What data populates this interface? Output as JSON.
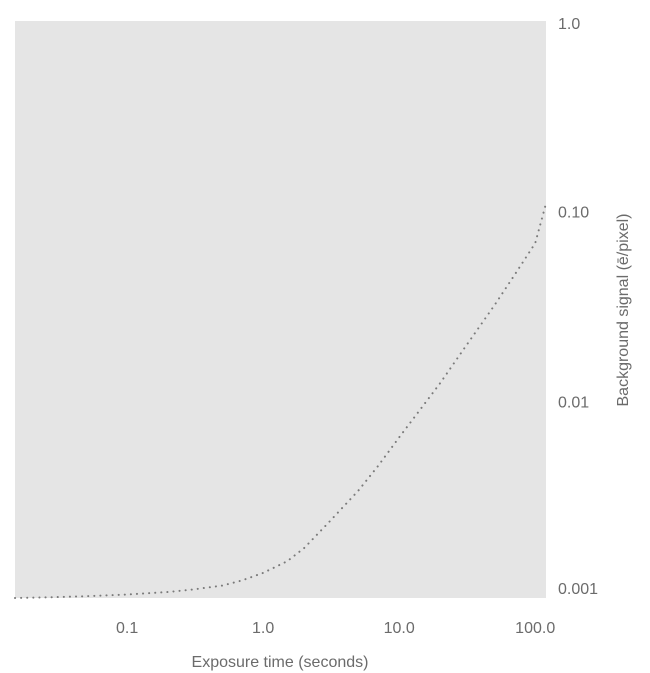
{
  "chart_data": {
    "type": "line",
    "xscale": "log",
    "yscale": "log",
    "xlabel": "Exposure time (seconds)",
    "ylabel": "Background signal (ē/pixel)",
    "xlim": [
      0.015,
      120
    ],
    "ylim": [
      0.00093,
      1.0
    ],
    "x_ticks": [
      0.1,
      1.0,
      10.0,
      100.0
    ],
    "x_tick_labels": [
      "0.1",
      "1.0",
      "10.0",
      "100.0"
    ],
    "y_ticks": [
      0.001,
      0.01,
      0.1,
      1.0
    ],
    "y_tick_labels": [
      "0.001",
      "0.01",
      "0.10",
      "1.0"
    ],
    "y_axis_position": "right",
    "grid": false,
    "series": [
      {
        "style": "dotted",
        "color": "#7a7a7a",
        "x": [
          0.015,
          0.03,
          0.05,
          0.1,
          0.2,
          0.3,
          0.5,
          0.7,
          1.0,
          1.5,
          2.0,
          3.0,
          5.0,
          7.0,
          10.0,
          20.0,
          30.0,
          50.0,
          70.0,
          100.0,
          120.0
        ],
        "y": [
          0.00093,
          0.00094,
          0.00095,
          0.00097,
          0.001,
          0.00103,
          0.00108,
          0.00115,
          0.00126,
          0.00145,
          0.0017,
          0.0023,
          0.0034,
          0.0046,
          0.0065,
          0.0125,
          0.019,
          0.032,
          0.046,
          0.068,
          0.11
        ]
      }
    ]
  },
  "colors": {
    "plot_background": "#e5e5e5",
    "text": "#6b6b6b",
    "line": "#7a7a7a"
  }
}
